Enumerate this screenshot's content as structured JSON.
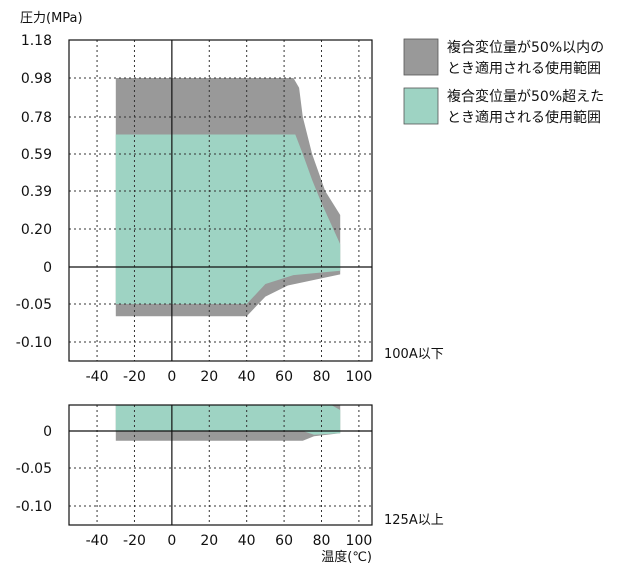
{
  "chart_data": {
    "type": "area",
    "xlabel": "温度(℃)",
    "ylabel": "圧力(MPa)",
    "colors": {
      "dark": "#999999",
      "light": "#9ed3c3"
    },
    "legend": [
      {
        "line1": "複合変位量が50%以内の",
        "line2": "とき適用される使用範囲"
      },
      {
        "line1": "複合変位量が50%超えた",
        "line2": "とき適用される使用範囲"
      }
    ],
    "panels": [
      {
        "label": "100A以下",
        "xlim": [
          -55,
          107
        ],
        "xticks": [
          "-40",
          "-20",
          "0",
          "20",
          "40",
          "60",
          "80",
          "100"
        ],
        "xtick_values": [
          -40,
          -20,
          0,
          20,
          40,
          60,
          80,
          100
        ],
        "yticks": [
          "1.18",
          "0.98",
          "0.78",
          "0.59",
          "0.39",
          "0.20",
          "0",
          "-0.05",
          "-0.10"
        ],
        "series": [
          {
            "name": "複合変位量が50%以内のとき適用される使用範囲",
            "points": [
              [
                -30,
                0.98
              ],
              [
                65,
                0.98
              ],
              [
                68,
                0.93
              ],
              [
                70,
                0.78
              ],
              [
                75,
                0.59
              ],
              [
                82,
                0.39
              ],
              [
                90,
                0.27
              ],
              [
                90,
                -0.01
              ],
              [
                62,
                -0.025
              ],
              [
                50,
                -0.04
              ],
              [
                40,
                -0.066
              ],
              [
                -30,
                -0.066
              ]
            ]
          },
          {
            "name": "複合変位量が50%超えたとき適用される使用範囲",
            "points": [
              [
                -30,
                0.69
              ],
              [
                66,
                0.69
              ],
              [
                70,
                0.59
              ],
              [
                75,
                0.45
              ],
              [
                80,
                0.33
              ],
              [
                90,
                0.12
              ],
              [
                90,
                -0.005
              ],
              [
                65,
                -0.011
              ],
              [
                50,
                -0.023
              ],
              [
                40,
                -0.05
              ],
              [
                -30,
                -0.05
              ]
            ]
          }
        ]
      },
      {
        "label": "125A以上",
        "xlim": [
          -55,
          107
        ],
        "xticks": [
          "-40",
          "-20",
          "0",
          "20",
          "40",
          "60",
          "80",
          "100"
        ],
        "xtick_values": [
          -40,
          -20,
          0,
          20,
          40,
          60,
          80,
          100
        ],
        "yticks": [
          "0",
          "-0.05",
          "-0.10"
        ],
        "series": [
          {
            "name": "複合変位量が50%以内のとき適用される使用範囲",
            "points": [
              [
                -30,
                0.035
              ],
              [
                90,
                0.035
              ],
              [
                90,
                -0.003
              ],
              [
                76,
                -0.007
              ],
              [
                70,
                -0.013
              ],
              [
                -30,
                -0.013
              ]
            ]
          },
          {
            "name": "複合変位量が50%超えたとき適用される使用範囲",
            "points": [
              [
                -30,
                0.035
              ],
              [
                85,
                0.035
              ],
              [
                90,
                0.028
              ],
              [
                90,
                -0.003
              ],
              [
                76,
                -0.005
              ],
              [
                70,
                0.0
              ],
              [
                -30,
                0.0
              ]
            ]
          }
        ]
      }
    ]
  }
}
